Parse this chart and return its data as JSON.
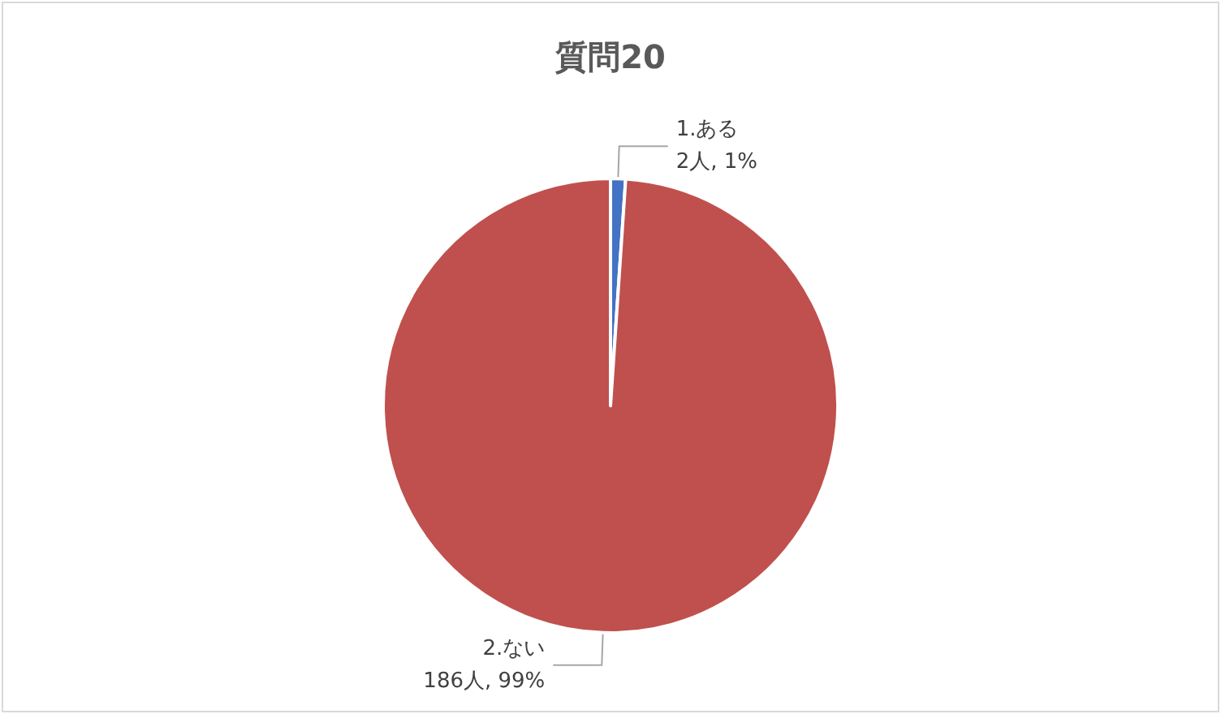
{
  "chart_data": {
    "type": "pie",
    "title": "質問20",
    "categories": [
      "1.ある",
      "2.ない"
    ],
    "values": [
      2,
      186
    ],
    "colors": [
      "#4472c4",
      "#c0504d"
    ],
    "value_labels": [
      "2人, 1%",
      "186人, 99%"
    ],
    "legend": false
  }
}
